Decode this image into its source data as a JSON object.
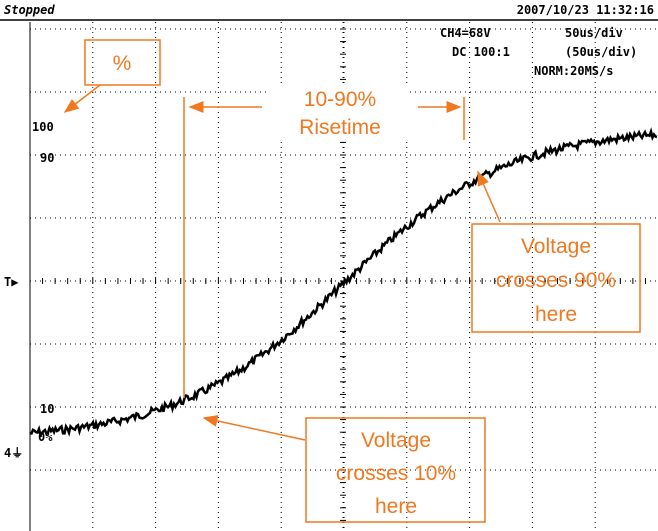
{
  "header": {
    "status": "Stopped",
    "timestamp": "2007/10/23 11:32:16"
  },
  "settings": {
    "channel": "CH4=68V",
    "timebase": "50us/div",
    "coupling": "DC  100:1",
    "timebase_alt": "(50us/div)",
    "mode": "NORM:20MS/s"
  },
  "scale_labels": [
    "100",
    "90",
    "10",
    "0%"
  ],
  "annotations": {
    "percent_box": "%",
    "risetime": [
      "10-90%",
      "Risetime"
    ],
    "cross_90": [
      "Voltage",
      "crosses 90%",
      "here"
    ],
    "cross_10": [
      "Voltage",
      "crosses 10%",
      "here"
    ]
  }
}
